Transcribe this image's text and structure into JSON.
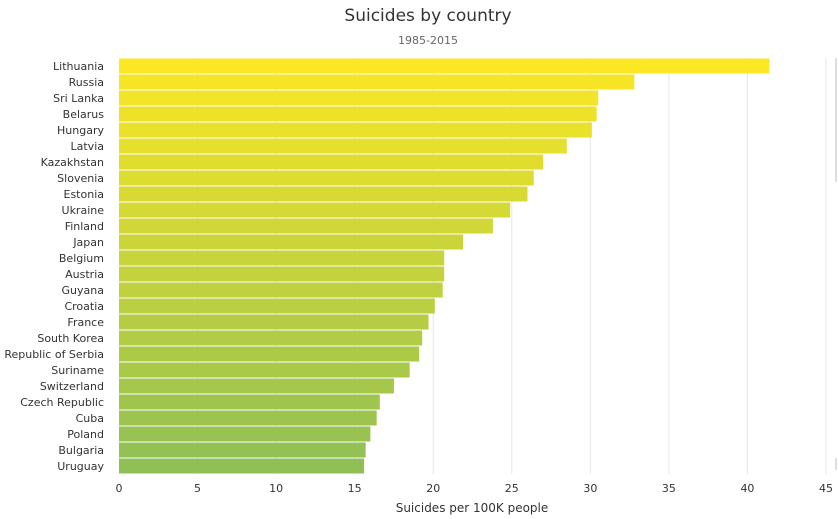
{
  "chart_data": {
    "type": "bar",
    "orientation": "horizontal",
    "title": "Suicides by country",
    "subtitle": "1985-2015",
    "xlabel": "Suicides per 100K people",
    "ylabel": "",
    "xlim": [
      0,
      45
    ],
    "ticks": [
      0,
      5,
      10,
      15,
      20,
      25,
      30,
      35,
      40,
      45
    ],
    "grid": true,
    "color_range": [
      "#fbe723",
      "#8fbf55"
    ],
    "categories": [
      "Lithuania",
      "Russia",
      "Sri Lanka",
      "Belarus",
      "Hungary",
      "Latvia",
      "Kazakhstan",
      "Slovenia",
      "Estonia",
      "Ukraine",
      "Finland",
      "Japan",
      "Belgium",
      "Austria",
      "Guyana",
      "Croatia",
      "France",
      "South Korea",
      "Republic of Serbia",
      "Suriname",
      "Switzerland",
      "Czech Republic",
      "Cuba",
      "Poland",
      "Bulgaria",
      "Uruguay"
    ],
    "values": [
      41.4,
      32.8,
      30.5,
      30.4,
      30.1,
      28.5,
      27.0,
      26.4,
      26.0,
      24.9,
      23.8,
      21.9,
      20.7,
      20.7,
      20.6,
      20.1,
      19.7,
      19.3,
      19.1,
      18.5,
      17.5,
      16.6,
      16.4,
      16.0,
      15.7,
      15.6
    ]
  }
}
